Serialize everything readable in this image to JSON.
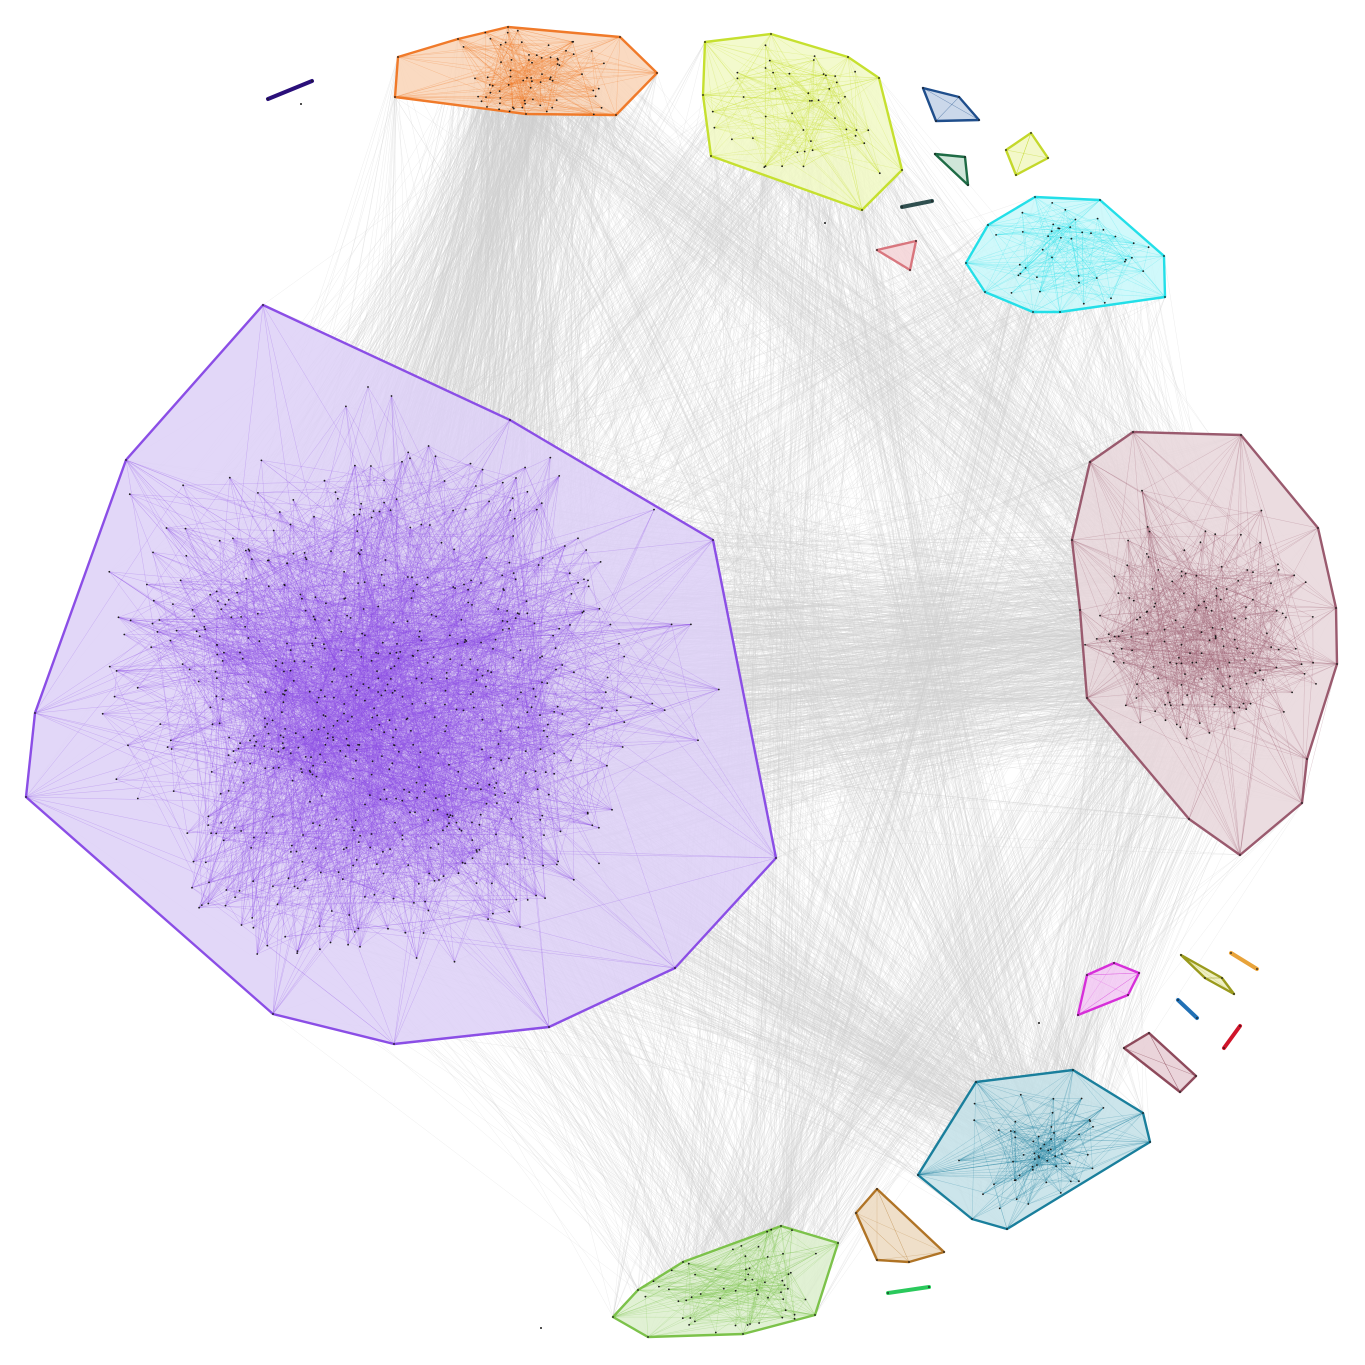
{
  "diagram": {
    "type": "network-cluster-graph",
    "background": "#ffffff",
    "inter_cluster_edge_color": "#cfcfcf",
    "node_color": "#1a1a1a",
    "clusters": [
      {
        "name": "cluster-purple-large",
        "color": "#8b4ee6",
        "fill": "#ddd0f7",
        "node_count": 680,
        "shape": "hull"
      },
      {
        "name": "cluster-maroon",
        "color": "#9a5a6e",
        "fill": "#e7d6da",
        "node_count": 150,
        "shape": "hull"
      },
      {
        "name": "cluster-orange",
        "color": "#f07a2a",
        "fill": "#f9d3b6",
        "node_count": 70,
        "shape": "hull"
      },
      {
        "name": "cluster-yellow-green",
        "color": "#c6e02f",
        "fill": "#f1f9c4",
        "node_count": 45,
        "shape": "hull"
      },
      {
        "name": "cluster-cyan",
        "color": "#23dfe8",
        "fill": "#c8f8fa",
        "node_count": 40,
        "shape": "hull"
      },
      {
        "name": "cluster-teal",
        "color": "#1a7f9c",
        "fill": "#c3e0e8",
        "node_count": 55,
        "shape": "hull"
      },
      {
        "name": "cluster-light-green",
        "color": "#7cc24a",
        "fill": "#dcefcd",
        "node_count": 55,
        "shape": "hull"
      },
      {
        "name": "cluster-brown",
        "color": "#b07426",
        "fill": "#ecd9c0",
        "node_count": 5,
        "shape": "hull"
      },
      {
        "name": "cluster-magenta",
        "color": "#d72fd9",
        "fill": "#f3c9f4",
        "node_count": 5,
        "shape": "hull"
      },
      {
        "name": "cluster-rose",
        "color": "#8e4a5c",
        "fill": "#e6ccd3",
        "node_count": 4,
        "shape": "hull"
      },
      {
        "name": "cluster-navy",
        "color": "#1f4e8c",
        "fill": "#c2d1e6",
        "node_count": 4,
        "shape": "hull"
      },
      {
        "name": "cluster-lime-small",
        "color": "#c4d82b",
        "fill": "#f1f7c0",
        "node_count": 4,
        "shape": "hull"
      },
      {
        "name": "cluster-dark-green",
        "color": "#1e6b45",
        "fill": "#c7e2d2",
        "node_count": 3,
        "shape": "hull"
      },
      {
        "name": "cluster-pink",
        "color": "#d9777f",
        "fill": "#f5d4d7",
        "node_count": 3,
        "shape": "hull"
      },
      {
        "name": "cluster-olive",
        "color": "#9a9a1c",
        "fill": "#ecedb8",
        "node_count": 3,
        "shape": "hull"
      },
      {
        "name": "cluster-indigo-pair",
        "color": "#2a0f7a",
        "fill": "#2a0f7a",
        "node_count": 2,
        "shape": "line"
      },
      {
        "name": "cluster-slate-pair",
        "color": "#2f4f4f",
        "fill": "#2f4f4f",
        "node_count": 2,
        "shape": "line"
      },
      {
        "name": "cluster-amber-pair",
        "color": "#e8a33a",
        "fill": "#e8a33a",
        "node_count": 2,
        "shape": "line"
      },
      {
        "name": "cluster-blue-pair",
        "color": "#2170b5",
        "fill": "#2170b5",
        "node_count": 2,
        "shape": "line"
      },
      {
        "name": "cluster-red-pair",
        "color": "#d0142a",
        "fill": "#d0142a",
        "node_count": 2,
        "shape": "line"
      },
      {
        "name": "cluster-green-pair",
        "color": "#2ac95c",
        "fill": "#2ac95c",
        "node_count": 2,
        "shape": "line"
      }
    ]
  }
}
